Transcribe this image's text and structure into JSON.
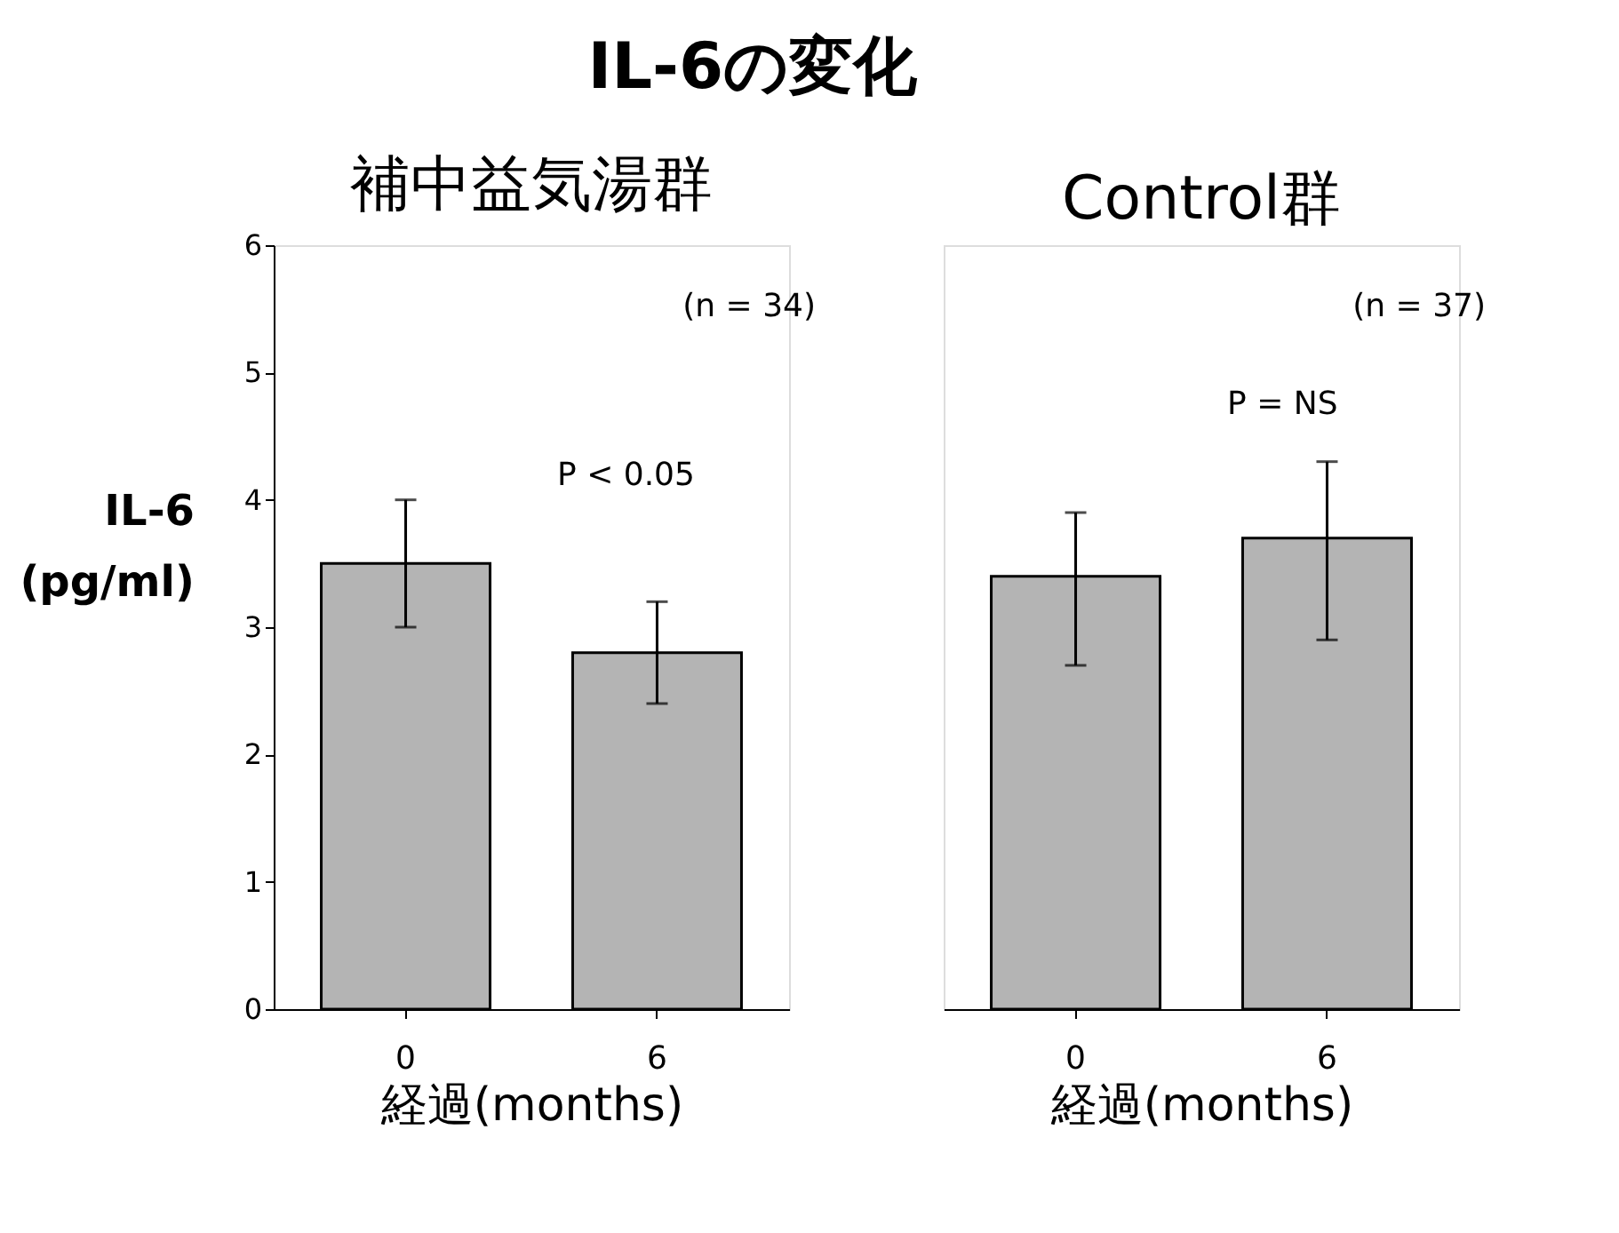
{
  "chart_data": [
    {
      "type": "bar",
      "title": "IL-6の変化",
      "subtitle": "補中益気湯群",
      "ylabel": "IL-6 (pg/ml)",
      "xlabel": "経過(months)",
      "categories": [
        "0",
        "6"
      ],
      "values": [
        3.5,
        2.8
      ],
      "errors": [
        [
          3.0,
          4.0
        ],
        [
          2.4,
          3.2
        ]
      ],
      "color": "#b4b4b4",
      "ylim": [
        0,
        6
      ],
      "yticks": [
        0,
        1,
        2,
        3,
        4,
        5,
        6
      ],
      "grid": false,
      "annotations": [
        "(n = 34)",
        "P < 0.05"
      ]
    },
    {
      "type": "bar",
      "subtitle": "Control群",
      "xlabel": "経過(months)",
      "categories": [
        "0",
        "6"
      ],
      "values": [
        3.4,
        3.7
      ],
      "errors": [
        [
          2.7,
          3.9
        ],
        [
          2.9,
          4.3
        ]
      ],
      "color": "#b4b4b4",
      "ylim": [
        0,
        6
      ],
      "tick_labels": "x",
      "grid": false,
      "annotations": [
        "(n = 37)",
        "P = NS"
      ]
    }
  ]
}
